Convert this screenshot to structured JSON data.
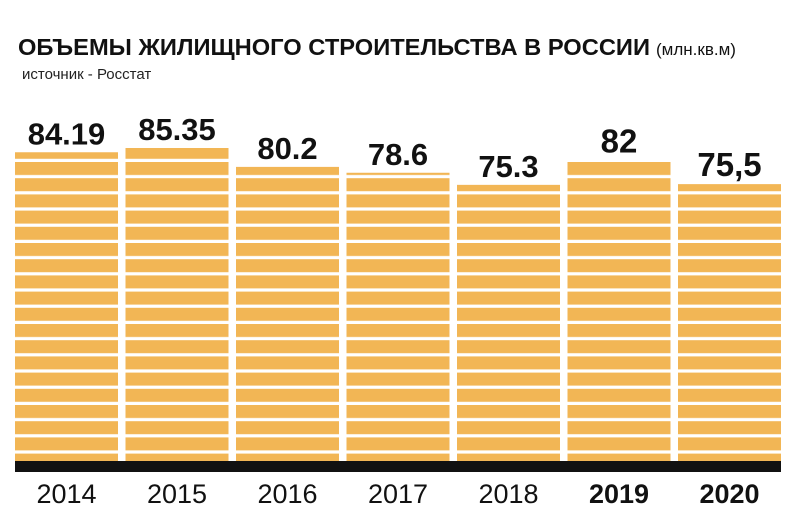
{
  "chart_data": {
    "type": "bar",
    "title": "ОБЪЕМЫ ЖИЛИЩНОГО СТРОИТЕЛЬСТВА В РОССИИ",
    "unit": "(млн.кв.м)",
    "subtitle": "источник - Росстат",
    "categories": [
      "2014",
      "2015",
      "2016",
      "2017",
      "2018",
      "2019",
      "2020"
    ],
    "values": [
      84.19,
      85.35,
      80.2,
      78.6,
      75.3,
      82,
      75.5
    ],
    "value_labels": [
      "84.19",
      "85.35",
      "80.2",
      "78.6",
      "75.3",
      "82",
      "75,5"
    ],
    "color": "#f2b655",
    "highlight": [
      5,
      6
    ]
  }
}
